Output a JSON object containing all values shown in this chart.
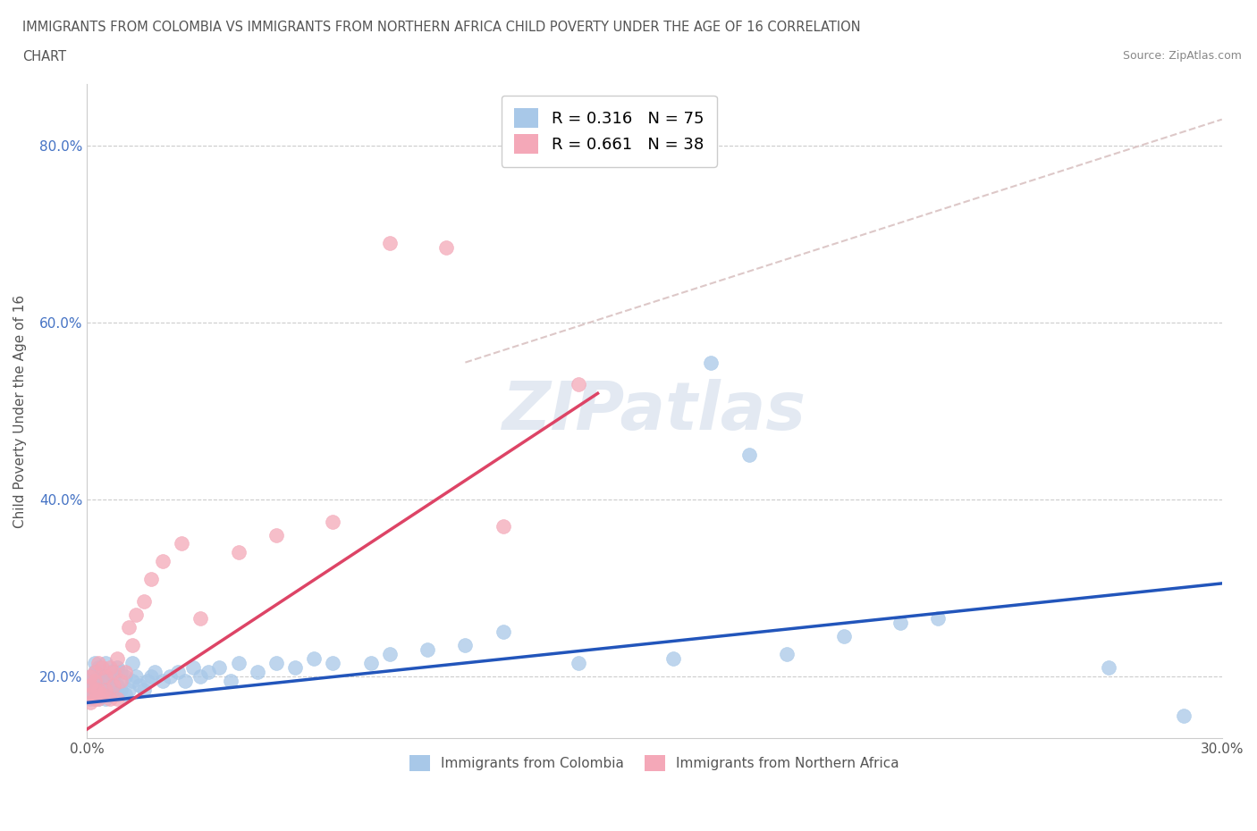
{
  "title_line1": "IMMIGRANTS FROM COLOMBIA VS IMMIGRANTS FROM NORTHERN AFRICA CHILD POVERTY UNDER THE AGE OF 16 CORRELATION",
  "title_line2": "CHART",
  "source": "Source: ZipAtlas.com",
  "ylabel": "Child Poverty Under the Age of 16",
  "xlabel": "",
  "xlim": [
    0.0,
    0.3
  ],
  "ylim": [
    0.13,
    0.87
  ],
  "xticks": [
    0.0,
    0.05,
    0.1,
    0.15,
    0.2,
    0.25,
    0.3
  ],
  "yticks": [
    0.2,
    0.4,
    0.6,
    0.8
  ],
  "colombia_R": 0.316,
  "colombia_N": 75,
  "n_africa_R": 0.661,
  "n_africa_N": 38,
  "colombia_color": "#a8c8e8",
  "n_africa_color": "#f4a8b8",
  "colombia_line_color": "#2255bb",
  "n_africa_line_color": "#dd4466",
  "ref_line_color": "#ddc8c8",
  "background_color": "#ffffff",
  "legend_label_colombia": "Immigrants from Colombia",
  "legend_label_n_africa": "Immigrants from Northern Africa",
  "colombia_x": [
    0.001,
    0.001,
    0.001,
    0.001,
    0.001,
    0.002,
    0.002,
    0.002,
    0.002,
    0.002,
    0.002,
    0.003,
    0.003,
    0.003,
    0.003,
    0.003,
    0.004,
    0.004,
    0.004,
    0.004,
    0.005,
    0.005,
    0.005,
    0.005,
    0.006,
    0.006,
    0.006,
    0.007,
    0.007,
    0.008,
    0.008,
    0.008,
    0.009,
    0.009,
    0.01,
    0.01,
    0.011,
    0.012,
    0.012,
    0.013,
    0.014,
    0.015,
    0.016,
    0.017,
    0.018,
    0.02,
    0.022,
    0.024,
    0.026,
    0.028,
    0.03,
    0.032,
    0.035,
    0.038,
    0.04,
    0.045,
    0.05,
    0.055,
    0.06,
    0.065,
    0.075,
    0.08,
    0.09,
    0.1,
    0.11,
    0.13,
    0.155,
    0.165,
    0.175,
    0.185,
    0.2,
    0.215,
    0.225,
    0.27,
    0.29
  ],
  "colombia_y": [
    0.175,
    0.185,
    0.19,
    0.195,
    0.2,
    0.175,
    0.18,
    0.19,
    0.195,
    0.205,
    0.215,
    0.175,
    0.185,
    0.19,
    0.2,
    0.21,
    0.178,
    0.185,
    0.195,
    0.205,
    0.175,
    0.185,
    0.195,
    0.215,
    0.18,
    0.19,
    0.205,
    0.185,
    0.2,
    0.18,
    0.19,
    0.21,
    0.185,
    0.205,
    0.18,
    0.2,
    0.185,
    0.195,
    0.215,
    0.2,
    0.19,
    0.185,
    0.195,
    0.2,
    0.205,
    0.195,
    0.2,
    0.205,
    0.195,
    0.21,
    0.2,
    0.205,
    0.21,
    0.195,
    0.215,
    0.205,
    0.215,
    0.21,
    0.22,
    0.215,
    0.215,
    0.225,
    0.23,
    0.235,
    0.25,
    0.215,
    0.22,
    0.555,
    0.45,
    0.225,
    0.245,
    0.26,
    0.265,
    0.21,
    0.155
  ],
  "n_africa_x": [
    0.001,
    0.001,
    0.001,
    0.001,
    0.002,
    0.002,
    0.002,
    0.002,
    0.003,
    0.003,
    0.003,
    0.004,
    0.004,
    0.005,
    0.005,
    0.006,
    0.006,
    0.007,
    0.007,
    0.008,
    0.008,
    0.009,
    0.01,
    0.011,
    0.012,
    0.013,
    0.015,
    0.017,
    0.02,
    0.025,
    0.03,
    0.04,
    0.05,
    0.065,
    0.08,
    0.095,
    0.11,
    0.13
  ],
  "n_africa_y": [
    0.17,
    0.18,
    0.19,
    0.2,
    0.175,
    0.185,
    0.195,
    0.205,
    0.175,
    0.185,
    0.215,
    0.18,
    0.21,
    0.185,
    0.2,
    0.175,
    0.21,
    0.19,
    0.205,
    0.175,
    0.22,
    0.195,
    0.205,
    0.255,
    0.235,
    0.27,
    0.285,
    0.31,
    0.33,
    0.35,
    0.265,
    0.34,
    0.36,
    0.375,
    0.69,
    0.685,
    0.37,
    0.53
  ],
  "colombia_line_x": [
    0.0,
    0.3
  ],
  "colombia_line_y": [
    0.17,
    0.305
  ],
  "n_africa_line_x": [
    0.0,
    0.135
  ],
  "n_africa_line_y": [
    0.14,
    0.52
  ],
  "ref_line_x": [
    0.1,
    0.3
  ],
  "ref_line_y": [
    0.555,
    0.83
  ]
}
